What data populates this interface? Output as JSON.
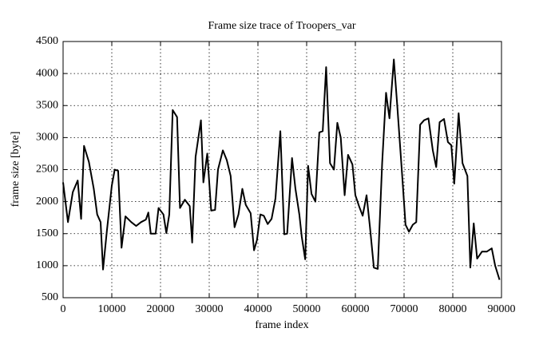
{
  "chart_data": {
    "type": "line",
    "title": "Frame size trace of Troopers_var",
    "x_label": "frame index",
    "y_label": "frame size [byte]",
    "xlim": [
      0,
      90000
    ],
    "xticks": [
      0,
      10000,
      20000,
      30000,
      40000,
      50000,
      60000,
      70000,
      80000,
      90000
    ],
    "ylim": [
      500,
      4500
    ],
    "yticks": [
      500,
      1000,
      1500,
      2000,
      2500,
      3000,
      3500,
      4000,
      4500
    ],
    "grid": true,
    "x": [
      0,
      1000,
      2000,
      3000,
      3700,
      4300,
      5300,
      6300,
      7000,
      7700,
      8200,
      9000,
      10000,
      10600,
      11300,
      12000,
      12800,
      14000,
      15000,
      16000,
      17000,
      17500,
      18000,
      19000,
      19600,
      20600,
      21200,
      21800,
      22500,
      23400,
      24000,
      25000,
      26000,
      26500,
      27200,
      28300,
      28800,
      29600,
      30400,
      31200,
      31800,
      32800,
      33600,
      34400,
      35200,
      36000,
      36800,
      37500,
      38500,
      39200,
      39800,
      40500,
      41200,
      42000,
      42800,
      43600,
      44600,
      45400,
      46000,
      47000,
      47700,
      48500,
      49000,
      49700,
      50300,
      51000,
      51800,
      52600,
      53300,
      54000,
      54800,
      55600,
      56300,
      57000,
      57800,
      58500,
      59400,
      60000,
      60800,
      61500,
      62300,
      63000,
      63800,
      64600,
      65500,
      66300,
      67000,
      67900,
      68600,
      69600,
      70300,
      71000,
      71800,
      72500,
      73300,
      74100,
      75000,
      75900,
      76600,
      77300,
      78200,
      79000,
      79700,
      80300,
      81200,
      82000,
      83000,
      83600,
      84300,
      85000,
      86000,
      87000,
      88000,
      88700,
      89600
    ],
    "series": [
      {
        "name": "Troopers_var",
        "color": "#000000",
        "values": [
          2300,
          1680,
          2150,
          2330,
          1730,
          2870,
          2620,
          2200,
          1800,
          1680,
          940,
          1550,
          2250,
          2500,
          2480,
          1280,
          1770,
          1680,
          1620,
          1680,
          1720,
          1830,
          1500,
          1500,
          1900,
          1800,
          1510,
          1800,
          3430,
          3320,
          1900,
          2030,
          1930,
          1360,
          2700,
          3270,
          2300,
          2750,
          1860,
          1870,
          2500,
          2800,
          2650,
          2400,
          1600,
          1800,
          2200,
          1950,
          1820,
          1240,
          1400,
          1800,
          1780,
          1650,
          1730,
          2050,
          3100,
          1490,
          1500,
          2680,
          2200,
          1800,
          1450,
          1100,
          2560,
          2120,
          2000,
          3080,
          3100,
          4100,
          2600,
          2500,
          3230,
          3000,
          2100,
          2730,
          2580,
          2100,
          1920,
          1780,
          2100,
          1600,
          970,
          950,
          2600,
          3700,
          3300,
          4220,
          3500,
          2420,
          1640,
          1530,
          1640,
          1680,
          3200,
          3270,
          3300,
          2800,
          2540,
          3240,
          3290,
          2930,
          2880,
          2280,
          3380,
          2600,
          2400,
          970,
          1660,
          1110,
          1220,
          1220,
          1270,
          1000,
          780
        ]
      }
    ]
  }
}
